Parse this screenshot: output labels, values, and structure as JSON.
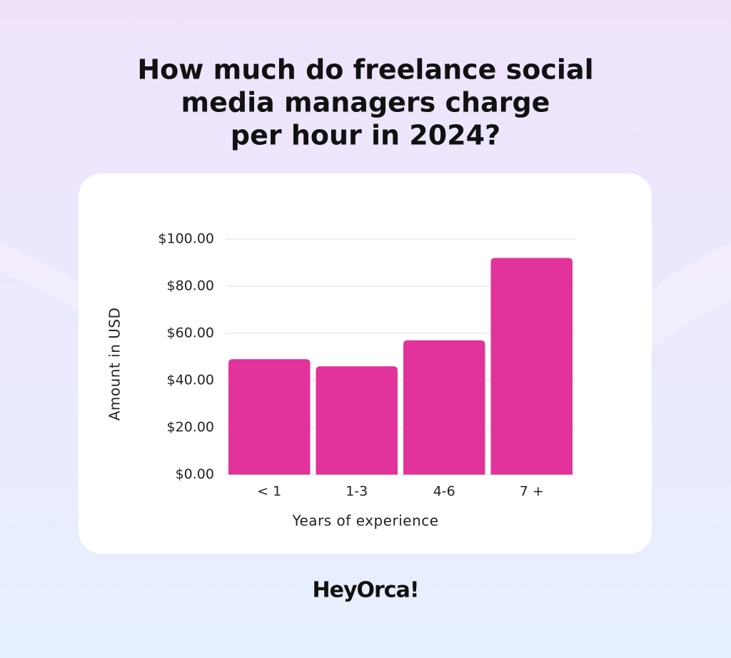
{
  "chart_data": {
    "type": "bar",
    "title": [
      "How much do freelance social",
      "media managers charge",
      "per hour in 2024?"
    ],
    "categories": [
      "< 1",
      "1-3",
      "4-6",
      "7 +"
    ],
    "values": [
      49,
      46,
      57,
      92
    ],
    "color": "#e2339a",
    "y_label": "Amount in USD",
    "x_label": "Years of experience",
    "ylim": [
      0,
      100
    ],
    "yticks": [
      {
        "value": 0,
        "label": "$0.00"
      },
      {
        "value": 20,
        "label": "$20.00"
      },
      {
        "value": 40,
        "label": "$40.00"
      },
      {
        "value": 60,
        "label": "$60.00"
      },
      {
        "value": 80,
        "label": "$80.00"
      },
      {
        "value": 100,
        "label": "$100.00"
      }
    ],
    "grid": true
  },
  "brand": "HeyOrca!"
}
